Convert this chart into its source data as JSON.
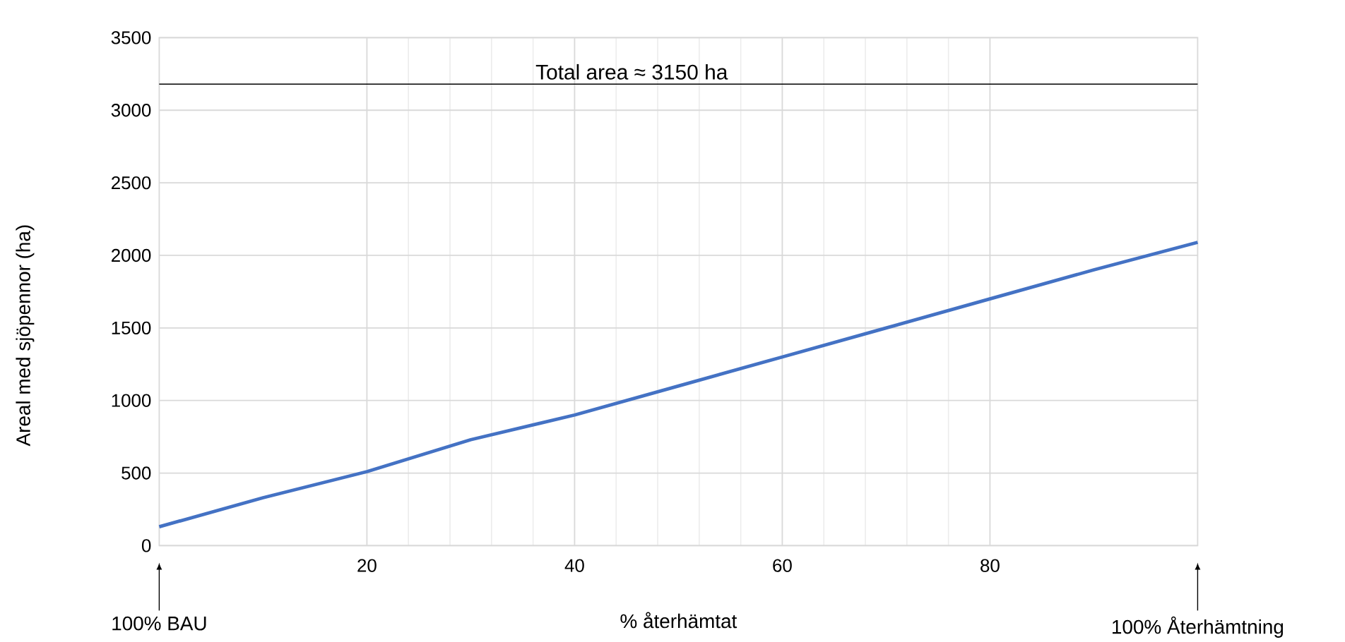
{
  "chart_data": {
    "type": "line",
    "xlabel": "% återhämtat",
    "ylabel": "Areal med sjöpennor (ha)",
    "x": [
      0,
      10,
      20,
      30,
      40,
      50,
      60,
      70,
      80,
      90,
      100
    ],
    "series": [
      {
        "color": "#4472c4",
        "values": [
          130,
          330,
          510,
          730,
          900,
          1100,
          1300,
          1500,
          1700,
          1900,
          2090
        ]
      }
    ],
    "xlim": [
      0,
      100
    ],
    "xticks": [
      20,
      40,
      60,
      80
    ],
    "ylim": [
      0,
      3500
    ],
    "yticks": [
      0,
      500,
      1000,
      1500,
      2000,
      2500,
      3000,
      3500
    ],
    "grid": true,
    "marker": "none",
    "line_style": "solid",
    "ref_lines": [
      {
        "axis": "y",
        "value": 3180,
        "label": "Total area ≈ 3150 ha",
        "color": "#000000"
      }
    ],
    "annotations": [
      {
        "text": "100% BAU",
        "x": 0
      },
      {
        "text": "100% Återhämtning",
        "x": 100
      }
    ]
  }
}
